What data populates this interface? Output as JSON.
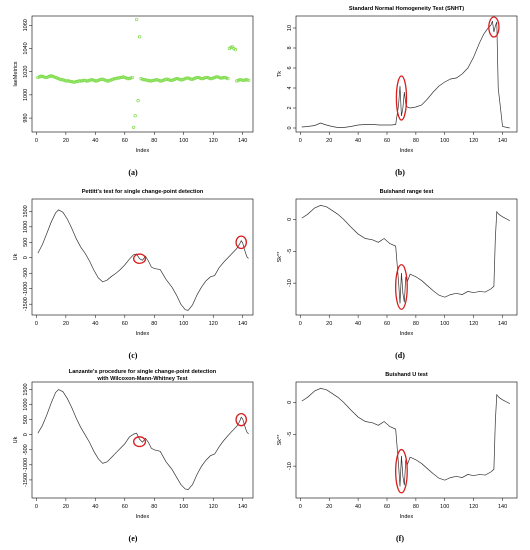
{
  "figure": {
    "captions": [
      "(a)",
      "(b)",
      "(c)",
      "(d)",
      "(e)",
      "(f)"
    ]
  },
  "chart_data": [
    {
      "id": "a",
      "type": "scatter",
      "title": "",
      "xlabel": "Index",
      "ylabel": "laeMetrics",
      "xlim": [
        -3,
        147
      ],
      "ylim": [
        968,
        1068
      ],
      "xticks": [
        0,
        20,
        40,
        60,
        80,
        100,
        120,
        140
      ],
      "yticks": [
        980,
        1000,
        1020,
        1040,
        1060
      ],
      "point_color": "#7ddc4a",
      "series": [
        {
          "x": [
            1,
            2,
            3,
            4,
            5,
            6,
            7,
            8,
            9,
            10,
            11,
            12,
            13,
            14,
            15,
            16,
            17,
            18,
            19,
            20,
            21,
            22,
            23,
            24,
            25,
            26,
            27,
            28,
            29,
            30,
            31,
            32,
            33,
            34,
            35,
            36,
            37,
            38,
            39,
            40,
            41,
            42,
            43,
            44,
            45,
            46,
            47,
            48,
            49,
            50,
            51,
            52,
            53,
            54,
            55,
            56,
            57,
            58,
            59,
            60,
            61,
            62,
            63,
            64,
            65,
            66,
            67,
            68,
            69,
            70,
            71,
            72,
            73,
            74,
            75,
            76,
            77,
            78,
            79,
            80,
            81,
            82,
            83,
            84,
            85,
            86,
            87,
            88,
            89,
            90,
            91,
            92,
            93,
            94,
            95,
            96,
            97,
            98,
            99,
            100,
            101,
            102,
            103,
            104,
            105,
            106,
            107,
            108,
            109,
            110,
            111,
            112,
            113,
            114,
            115,
            116,
            117,
            118,
            119,
            120,
            121,
            122,
            123,
            124,
            125,
            126,
            127,
            128,
            129,
            130,
            131,
            132,
            133,
            134,
            135,
            136,
            137,
            138,
            139,
            140,
            141,
            142,
            143,
            144
          ],
          "y": [
            1015,
            1015.5,
            1016,
            1016,
            1015.5,
            1015,
            1015,
            1015.5,
            1016,
            1016.5,
            1016,
            1015.5,
            1015,
            1014.5,
            1014,
            1013.5,
            1013,
            1013,
            1012.5,
            1012,
            1012,
            1012,
            1011.5,
            1011.5,
            1011,
            1011,
            1011.5,
            1011.5,
            1012,
            1012,
            1012,
            1012.5,
            1012.5,
            1012,
            1012,
            1012.5,
            1013,
            1013,
            1012.5,
            1012,
            1012,
            1012.5,
            1013,
            1013.5,
            1013.5,
            1013,
            1012.5,
            1012,
            1012,
            1012.5,
            1013,
            1013.5,
            1014,
            1014,
            1014.5,
            1014.5,
            1015,
            1015,
            1015.5,
            1015,
            1014.5,
            1014,
            1014,
            1014.5,
            1015,
            972,
            982,
            1065,
            995,
            1050,
            1014,
            1013.5,
            1013,
            1013,
            1012.5,
            1012.5,
            1012,
            1012,
            1012.5,
            1012.5,
            1013,
            1013,
            1012.5,
            1012,
            1012,
            1012.5,
            1013,
            1013.5,
            1013.5,
            1013,
            1012.5,
            1012.5,
            1013,
            1013.5,
            1014,
            1014,
            1013.5,
            1013,
            1013,
            1013.5,
            1014,
            1014.5,
            1014.5,
            1014,
            1013.5,
            1013.5,
            1014,
            1014.5,
            1015,
            1015,
            1014.5,
            1014,
            1014,
            1014.5,
            1015,
            1015,
            1014.5,
            1014,
            1014,
            1014.5,
            1015,
            1015.5,
            1015.5,
            1015,
            1014.5,
            1014.5,
            1015,
            1015,
            1014.5,
            1014,
            1040,
            1041,
            1041.5,
            1040,
            1039,
            1012,
            1012.5,
            1013,
            1013,
            1012.5,
            1012.5,
            1013,
            1013,
            1012.5
          ]
        }
      ]
    },
    {
      "id": "b",
      "type": "line",
      "title": "Standard Normal Homogeneity Test (SNHT)",
      "xlabel": "Index",
      "ylabel": "Tk",
      "xlim": [
        -3,
        150
      ],
      "ylim": [
        -0.4,
        11.2
      ],
      "xticks": [
        0,
        20,
        40,
        60,
        80,
        100,
        120,
        140
      ],
      "yticks": [
        0,
        2,
        4,
        6,
        8,
        10
      ],
      "series": [
        {
          "x": [
            1,
            5,
            10,
            14,
            18,
            22,
            26,
            30,
            35,
            40,
            45,
            50,
            55,
            60,
            63,
            66,
            68,
            69,
            70,
            71,
            72,
            73,
            74,
            76,
            78,
            80,
            84,
            88,
            92,
            96,
            100,
            104,
            108,
            112,
            116,
            120,
            124,
            127,
            130,
            132,
            133,
            134,
            135,
            136,
            137,
            140,
            145
          ],
          "y": [
            0.1,
            0.15,
            0.25,
            0.5,
            0.3,
            0.15,
            0.05,
            0.05,
            0.15,
            0.3,
            0.35,
            0.35,
            0.3,
            0.3,
            0.3,
            0.35,
            2.3,
            4.2,
            1.2,
            2.0,
            3.6,
            2.4,
            2.1,
            2.0,
            2.05,
            2.1,
            2.3,
            2.9,
            3.6,
            4.2,
            4.6,
            4.9,
            5.0,
            5.4,
            6.0,
            7.1,
            8.5,
            9.4,
            10.0,
            10.3,
            10.7,
            9.6,
            10.2,
            10.6,
            4.0,
            0.15,
            0.0
          ]
        }
      ],
      "annotations": [
        {
          "shape": "ellipse",
          "cx": 70,
          "cy": 3.0,
          "rx": 3.5,
          "ry": 2.2
        },
        {
          "shape": "ellipse",
          "cx": 134,
          "cy": 10.1,
          "rx": 3.5,
          "ry": 1.0
        }
      ]
    },
    {
      "id": "c",
      "type": "line",
      "title": "Pettitt's test for single change-point detection",
      "xlabel": "Index",
      "ylabel": "Uk",
      "xlim": [
        -3,
        147
      ],
      "ylim": [
        -1850,
        1900
      ],
      "xticks": [
        0,
        20,
        40,
        60,
        80,
        100,
        120,
        140
      ],
      "yticks": [
        -1500,
        -1000,
        -500,
        0,
        500,
        1000,
        1500
      ],
      "series": [
        {
          "x": [
            1,
            4,
            7,
            10,
            13,
            15,
            18,
            21,
            24,
            27,
            30,
            33,
            36,
            39,
            42,
            45,
            48,
            51,
            54,
            57,
            60,
            63,
            66,
            68,
            70,
            72,
            74,
            76,
            78,
            80,
            84,
            88,
            92,
            95,
            98,
            101,
            103,
            106,
            109,
            112,
            115,
            118,
            121,
            124,
            127,
            130,
            133,
            136,
            138,
            139,
            140,
            141,
            142,
            143,
            144
          ],
          "y": [
            150,
            420,
            780,
            1150,
            1450,
            1550,
            1470,
            1250,
            950,
            620,
            350,
            150,
            -100,
            -400,
            -650,
            -780,
            -720,
            -600,
            -500,
            -380,
            -230,
            -50,
            100,
            120,
            -30,
            -80,
            50,
            -100,
            -300,
            -350,
            -380,
            -700,
            -950,
            -1200,
            -1500,
            -1680,
            -1700,
            -1520,
            -1200,
            -950,
            -750,
            -620,
            -570,
            -320,
            -150,
            0,
            150,
            300,
            450,
            550,
            480,
            300,
            150,
            20,
            -20
          ]
        }
      ],
      "annotations": [
        {
          "shape": "ellipse",
          "cx": 70,
          "cy": -30,
          "rx": 4,
          "ry": 150
        },
        {
          "shape": "ellipse",
          "cx": 139,
          "cy": 500,
          "rx": 3.5,
          "ry": 200
        }
      ]
    },
    {
      "id": "d",
      "type": "line",
      "title": "Buishand range test",
      "xlabel": "Index",
      "ylabel": "Sk**",
      "xlim": [
        -3,
        150
      ],
      "ylim": [
        -15,
        3.2
      ],
      "xticks": [
        0,
        20,
        40,
        60,
        80,
        100,
        120,
        140
      ],
      "yticks": [
        -10,
        -5,
        0
      ],
      "series": [
        {
          "x": [
            1,
            5,
            10,
            14,
            18,
            22,
            26,
            30,
            35,
            40,
            45,
            50,
            54,
            58,
            62,
            66,
            68,
            69,
            70,
            71,
            72,
            73,
            74,
            76,
            78,
            80,
            84,
            88,
            92,
            96,
            100,
            104,
            108,
            112,
            116,
            120,
            124,
            128,
            132,
            134,
            135,
            136,
            137,
            138,
            140,
            145
          ],
          "y": [
            0.2,
            0.8,
            1.8,
            2.2,
            2.0,
            1.4,
            0.8,
            0.0,
            -1.2,
            -2.3,
            -3.0,
            -3.2,
            -3.6,
            -3.0,
            -3.8,
            -4.2,
            -9.8,
            -13.2,
            -8.4,
            -11.6,
            -13.0,
            -9.0,
            -9.8,
            -8.6,
            -8.8,
            -9.0,
            -9.6,
            -10.4,
            -11.2,
            -11.9,
            -12.2,
            -11.8,
            -11.6,
            -11.8,
            -11.3,
            -11.5,
            -11.3,
            -11.4,
            -10.9,
            -10.5,
            -3.0,
            1.2,
            0.9,
            0.7,
            0.4,
            -0.2
          ]
        }
      ],
      "annotations": [
        {
          "shape": "ellipse",
          "cx": 70,
          "cy": -10.6,
          "rx": 4,
          "ry": 3.5
        }
      ]
    },
    {
      "id": "e",
      "type": "line",
      "title": "Lanzante's procedure for single change-point detection\nwith Wilcoxon-Mann-Whitney Test",
      "xlabel": "Index",
      "ylabel": "Uk",
      "xlim": [
        -3,
        147
      ],
      "ylim": [
        -2100,
        1750
      ],
      "xticks": [
        0,
        20,
        40,
        60,
        80,
        100,
        120,
        140
      ],
      "yticks": [
        -1500,
        -1000,
        -500,
        0,
        500,
        1000,
        1500
      ],
      "series": [
        {
          "x": [
            1,
            4,
            7,
            10,
            13,
            15,
            18,
            21,
            24,
            27,
            30,
            33,
            36,
            39,
            42,
            45,
            48,
            51,
            54,
            57,
            60,
            63,
            66,
            68,
            70,
            72,
            74,
            76,
            78,
            80,
            84,
            88,
            92,
            95,
            98,
            101,
            103,
            106,
            109,
            112,
            115,
            118,
            121,
            124,
            127,
            130,
            133,
            136,
            138,
            139,
            140,
            141,
            142,
            143,
            144
          ],
          "y": [
            50,
            300,
            650,
            1050,
            1400,
            1500,
            1430,
            1200,
            900,
            550,
            250,
            0,
            -250,
            -550,
            -800,
            -950,
            -900,
            -750,
            -600,
            -450,
            -300,
            -80,
            20,
            50,
            -150,
            -250,
            -120,
            -250,
            -450,
            -500,
            -550,
            -900,
            -1150,
            -1400,
            -1650,
            -1800,
            -1820,
            -1650,
            -1320,
            -1050,
            -850,
            -700,
            -640,
            -400,
            -200,
            -30,
            130,
            280,
            450,
            580,
            520,
            360,
            200,
            80,
            30
          ]
        }
      ],
      "annotations": [
        {
          "shape": "ellipse",
          "cx": 70,
          "cy": -230,
          "rx": 4,
          "ry": 160
        },
        {
          "shape": "ellipse",
          "cx": 139,
          "cy": 500,
          "rx": 3.5,
          "ry": 200
        }
      ]
    },
    {
      "id": "f",
      "type": "line",
      "title": "Buishand U test",
      "xlabel": "Index",
      "ylabel": "Sk**",
      "xlim": [
        -3,
        150
      ],
      "ylim": [
        -15,
        3.2
      ],
      "xticks": [
        0,
        20,
        40,
        60,
        80,
        100,
        120,
        140
      ],
      "yticks": [
        -10,
        -5,
        0
      ],
      "series": [
        {
          "x": [
            1,
            5,
            10,
            14,
            18,
            22,
            26,
            30,
            35,
            40,
            45,
            50,
            54,
            58,
            62,
            66,
            68,
            69,
            70,
            71,
            72,
            73,
            74,
            76,
            78,
            80,
            84,
            88,
            92,
            96,
            100,
            104,
            108,
            112,
            116,
            120,
            124,
            128,
            132,
            134,
            135,
            136,
            137,
            138,
            140,
            145
          ],
          "y": [
            0.2,
            0.8,
            1.8,
            2.2,
            2.0,
            1.4,
            0.8,
            0.0,
            -1.2,
            -2.3,
            -3.0,
            -3.2,
            -3.6,
            -3.0,
            -3.8,
            -4.2,
            -9.8,
            -13.2,
            -8.4,
            -11.6,
            -13.0,
            -9.0,
            -9.8,
            -8.6,
            -8.8,
            -9.0,
            -9.6,
            -10.4,
            -11.2,
            -11.9,
            -12.2,
            -11.8,
            -11.6,
            -11.8,
            -11.3,
            -11.5,
            -11.3,
            -11.4,
            -10.9,
            -10.5,
            -3.0,
            1.2,
            0.9,
            0.7,
            0.4,
            -0.2
          ]
        }
      ],
      "annotations": [
        {
          "shape": "ellipse",
          "cx": 70,
          "cy": -10.8,
          "rx": 4,
          "ry": 3.4
        }
      ]
    }
  ]
}
